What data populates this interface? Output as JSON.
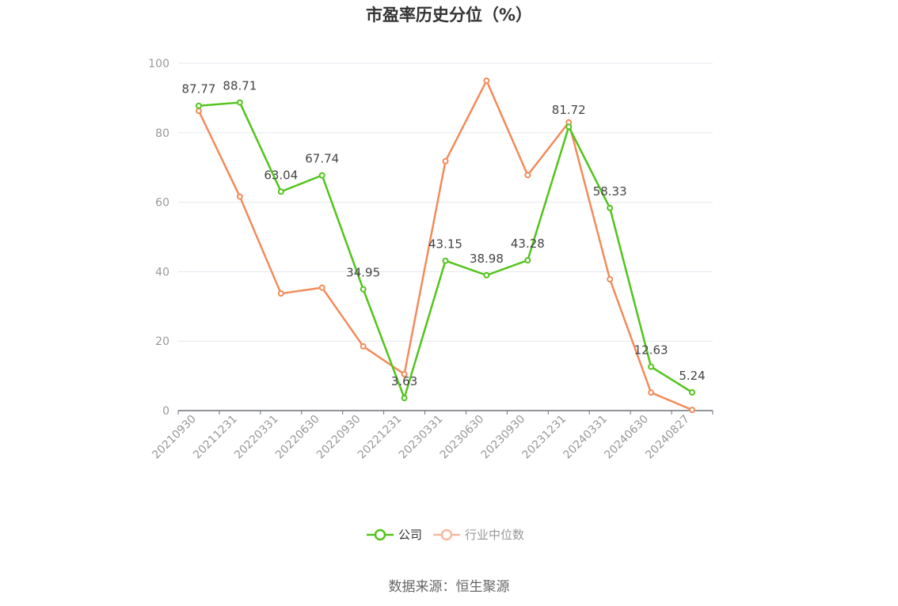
{
  "chart_data": {
    "type": "line",
    "title": "市盈率历史分位（%）",
    "categories": [
      "20210930",
      "20211231",
      "20220331",
      "20220630",
      "20220930",
      "20221231",
      "20230331",
      "20230630",
      "20230930",
      "20231231",
      "20240331",
      "20240630",
      "20240827"
    ],
    "ylim": [
      0,
      100
    ],
    "yticks": [
      0,
      20,
      40,
      60,
      80,
      100
    ],
    "grid": true,
    "legend_position": "bottom",
    "series": [
      {
        "name": "公司",
        "color": "#52c41a",
        "show_labels": true,
        "values": [
          87.77,
          88.71,
          63.04,
          67.74,
          34.95,
          3.63,
          43.15,
          38.98,
          43.28,
          81.72,
          58.33,
          12.63,
          5.24
        ]
      },
      {
        "name": "行业中位数",
        "color": "#f28b5a",
        "legend_color": "#f9b9a0",
        "show_labels": false,
        "values": [
          86.3,
          61.6,
          33.7,
          35.4,
          18.5,
          10.5,
          71.8,
          95.0,
          67.8,
          83.0,
          37.8,
          5.2,
          0.2
        ]
      }
    ]
  },
  "source_text": "数据来源：恒生聚源"
}
